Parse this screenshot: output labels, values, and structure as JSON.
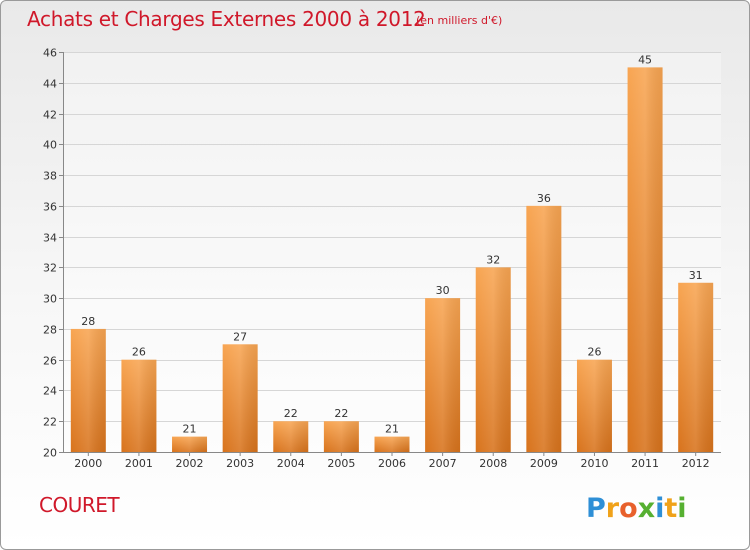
{
  "header": {
    "title": "Achats et Charges Externes 2000 à 2012",
    "unit": "(en milliers d'€)"
  },
  "footer": {
    "commune": "COURET",
    "logo_text": "Proxiti"
  },
  "colors": {
    "title": "#d0182a",
    "bar_top": "#f8a552",
    "bar_bottom": "#d8731c",
    "grid": "#d6d6d6"
  },
  "chart_data": {
    "type": "bar",
    "title": "Achats et Charges Externes 2000 à 2012",
    "subtitle": "(en milliers d'€)",
    "categories": [
      "2000",
      "2001",
      "2002",
      "2003",
      "2004",
      "2005",
      "2006",
      "2007",
      "2008",
      "2009",
      "2010",
      "2011",
      "2012"
    ],
    "values": [
      28,
      26,
      21,
      27,
      22,
      22,
      21,
      30,
      32,
      36,
      26,
      45,
      31
    ],
    "ylim": [
      20,
      46
    ],
    "yticks": [
      20,
      22,
      24,
      26,
      28,
      30,
      32,
      34,
      36,
      38,
      40,
      42,
      44,
      46
    ],
    "grid": true,
    "legend": "none"
  }
}
